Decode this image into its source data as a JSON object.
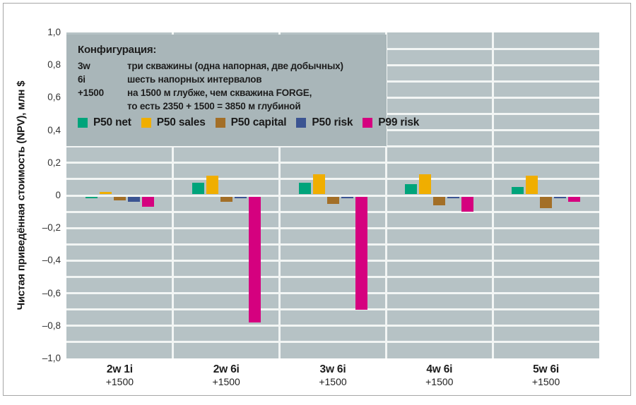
{
  "colors": {
    "frame_border": "#a6a6a6",
    "plot_background": "#b6c2c5",
    "config_box_background": "#a9b6b9",
    "gridline": "#f2f5f4",
    "text": "#1d1d1d"
  },
  "config_box": {
    "title": "Конфигурация:",
    "rows": [
      {
        "term": "3w",
        "desc": "три скважины (одна напорная, две добычных)"
      },
      {
        "term": "6i",
        "desc": "шесть напорных интервалов"
      },
      {
        "term": "+1500",
        "desc": "на 1500 м глубже, чем скважина FORGE,\nто есть 2350 + 1500 = 3850 м глубиной"
      }
    ]
  },
  "chart_data": {
    "type": "bar",
    "title": "",
    "ylabel": "Чистая приведённая стоимость (NPV), млн $",
    "ylim": [
      -1.0,
      1.0
    ],
    "ytick_step": 0.2,
    "gridline_step": 0.1,
    "ytick_labels": [
      "1,0",
      "0,8",
      "0,6",
      "0,4",
      "0,2",
      "0",
      "–0,2",
      "–0,4",
      "–0,6",
      "–0,8",
      "–1,0"
    ],
    "grid": true,
    "legend_position": "inside top-left",
    "categories": [
      {
        "top": "2w 1i",
        "bottom": "+1500"
      },
      {
        "top": "2w 6i",
        "bottom": "+1500"
      },
      {
        "top": "3w 6i",
        "bottom": "+1500"
      },
      {
        "top": "4w 6i",
        "bottom": "+1500"
      },
      {
        "top": "5w 6i",
        "bottom": "+1500"
      }
    ],
    "series": [
      {
        "name": "P50 net",
        "color": "#00a47b",
        "values": [
          -0.01,
          0.08,
          0.08,
          0.07,
          0.05
        ]
      },
      {
        "name": "P50 sales",
        "color": "#f0ae00",
        "values": [
          0.02,
          0.12,
          0.13,
          0.13,
          0.12
        ]
      },
      {
        "name": "P50 capital",
        "color": "#a36f27",
        "values": [
          -0.03,
          -0.04,
          -0.05,
          -0.06,
          -0.08
        ]
      },
      {
        "name": "P50 risk",
        "color": "#3b5492",
        "values": [
          -0.04,
          -0.01,
          -0.01,
          -0.01,
          -0.01
        ]
      },
      {
        "name": "P99 risk",
        "color": "#d5017f",
        "values": [
          -0.07,
          -0.78,
          -0.7,
          -0.1,
          -0.04
        ]
      }
    ]
  }
}
